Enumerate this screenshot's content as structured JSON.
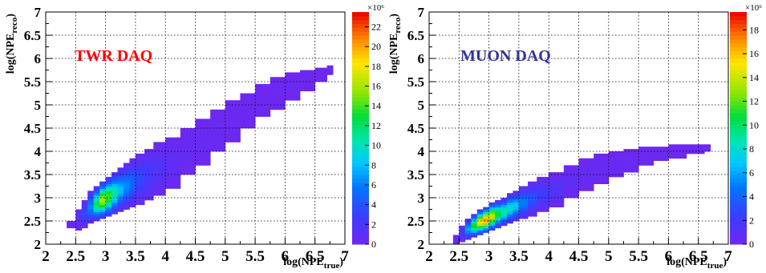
{
  "chart_data": [
    {
      "type": "heatmap",
      "title": "",
      "annotation": "TWR DAQ",
      "annotation_color": "#ff0000",
      "xlabel": {
        "base": "log(NPE",
        "sub": "true",
        "close": ")"
      },
      "ylabel": {
        "base": "log(NPE",
        "sub": "reco",
        "close": ")"
      },
      "xlim": [
        2,
        7
      ],
      "ylim": [
        2,
        7
      ],
      "x_ticks": [
        "2",
        "2.5",
        "3",
        "3.5",
        "4",
        "4.5",
        "5",
        "5.5",
        "6",
        "6.5",
        "7"
      ],
      "y_ticks": [
        "2",
        "2.5",
        "3",
        "3.5",
        "4",
        "4.5",
        "5",
        "5.5",
        "6",
        "6.5",
        "7"
      ],
      "grid": true,
      "colorbar": {
        "exponent_label": "×10⁶",
        "range": [
          0,
          23.5
        ],
        "ticks": [
          "0",
          "2",
          "4",
          "6",
          "8",
          "10",
          "12",
          "14",
          "16",
          "18",
          "20",
          "22"
        ]
      },
      "band": [
        {
          "x": 2.35,
          "ylo": 2.35,
          "yhi": 2.5,
          "z": 0.4
        },
        {
          "x": 2.5,
          "ylo": 2.3,
          "yhi": 2.75,
          "z": 1.2
        },
        {
          "x": 2.6,
          "ylo": 2.35,
          "yhi": 2.95,
          "z": 3.5
        },
        {
          "x": 2.7,
          "ylo": 2.45,
          "yhi": 3.15,
          "z": 6.5
        },
        {
          "x": 2.8,
          "ylo": 2.5,
          "yhi": 3.25,
          "z": 12
        },
        {
          "x": 2.9,
          "ylo": 2.55,
          "yhi": 3.35,
          "z": 16
        },
        {
          "x": 3.0,
          "ylo": 2.6,
          "yhi": 3.45,
          "z": 14
        },
        {
          "x": 3.1,
          "ylo": 2.65,
          "yhi": 3.55,
          "z": 11
        },
        {
          "x": 3.2,
          "ylo": 2.7,
          "yhi": 3.65,
          "z": 8
        },
        {
          "x": 3.3,
          "ylo": 2.75,
          "yhi": 3.75,
          "z": 6.5
        },
        {
          "x": 3.4,
          "ylo": 2.8,
          "yhi": 3.85,
          "z": 5
        },
        {
          "x": 3.5,
          "ylo": 2.85,
          "yhi": 3.95,
          "z": 3.5
        },
        {
          "x": 3.65,
          "ylo": 2.95,
          "yhi": 4.05,
          "z": 2.5
        },
        {
          "x": 3.8,
          "ylo": 3.05,
          "yhi": 4.2,
          "z": 1.6
        },
        {
          "x": 4.0,
          "ylo": 3.2,
          "yhi": 4.3,
          "z": 0.9
        },
        {
          "x": 4.25,
          "ylo": 3.5,
          "yhi": 4.5,
          "z": 0.5
        },
        {
          "x": 4.5,
          "ylo": 3.7,
          "yhi": 4.7,
          "z": 0.4
        },
        {
          "x": 4.75,
          "ylo": 4.0,
          "yhi": 4.9,
          "z": 0.3
        },
        {
          "x": 5.0,
          "ylo": 4.2,
          "yhi": 5.1,
          "z": 0.25
        },
        {
          "x": 5.25,
          "ylo": 4.5,
          "yhi": 5.25,
          "z": 0.2
        },
        {
          "x": 5.5,
          "ylo": 4.75,
          "yhi": 5.45,
          "z": 0.2
        },
        {
          "x": 5.75,
          "ylo": 4.9,
          "yhi": 5.6,
          "z": 0.15
        },
        {
          "x": 6.0,
          "ylo": 5.1,
          "yhi": 5.7,
          "z": 0.15
        },
        {
          "x": 6.25,
          "ylo": 5.3,
          "yhi": 5.75,
          "z": 0.1
        },
        {
          "x": 6.5,
          "ylo": 5.5,
          "yhi": 5.8,
          "z": 0.1
        },
        {
          "x": 6.7,
          "ylo": 5.65,
          "yhi": 5.85,
          "z": 0.1
        }
      ]
    },
    {
      "type": "heatmap",
      "title": "",
      "annotation": "MUON DAQ",
      "annotation_color": "#333399",
      "xlabel": {
        "base": "log(NPE",
        "sub": "true",
        "close": ")"
      },
      "ylabel": {
        "base": "log(NPE",
        "sub": "reco",
        "close": ")"
      },
      "xlim": [
        2,
        7
      ],
      "ylim": [
        2,
        7
      ],
      "x_ticks": [
        "2",
        "2.5",
        "3",
        "3.5",
        "4",
        "4.5",
        "5",
        "5.5",
        "6",
        "6.5",
        "7"
      ],
      "y_ticks": [
        "2",
        "2.5",
        "3",
        "3.5",
        "4",
        "4.5",
        "5",
        "5.5",
        "6",
        "6.5",
        "7"
      ],
      "grid": true,
      "colorbar": {
        "exponent_label": "×10⁶",
        "range": [
          0,
          19.5
        ],
        "ticks": [
          "0",
          "2",
          "4",
          "6",
          "8",
          "10",
          "12",
          "14",
          "16",
          "18"
        ]
      },
      "band": [
        {
          "x": 2.4,
          "ylo": 2.0,
          "yhi": 2.2,
          "z": 0.6
        },
        {
          "x": 2.5,
          "ylo": 2.05,
          "yhi": 2.4,
          "z": 2.5
        },
        {
          "x": 2.6,
          "ylo": 2.1,
          "yhi": 2.55,
          "z": 6
        },
        {
          "x": 2.7,
          "ylo": 2.15,
          "yhi": 2.65,
          "z": 11
        },
        {
          "x": 2.8,
          "ylo": 2.2,
          "yhi": 2.75,
          "z": 15
        },
        {
          "x": 2.9,
          "ylo": 2.25,
          "yhi": 2.8,
          "z": 17
        },
        {
          "x": 3.0,
          "ylo": 2.3,
          "yhi": 2.9,
          "z": 14
        },
        {
          "x": 3.1,
          "ylo": 2.35,
          "yhi": 2.95,
          "z": 11
        },
        {
          "x": 3.2,
          "ylo": 2.4,
          "yhi": 3.0,
          "z": 9
        },
        {
          "x": 3.3,
          "ylo": 2.45,
          "yhi": 3.1,
          "z": 8
        },
        {
          "x": 3.4,
          "ylo": 2.5,
          "yhi": 3.15,
          "z": 7
        },
        {
          "x": 3.5,
          "ylo": 2.55,
          "yhi": 3.25,
          "z": 5
        },
        {
          "x": 3.65,
          "ylo": 2.6,
          "yhi": 3.35,
          "z": 3.5
        },
        {
          "x": 3.8,
          "ylo": 2.7,
          "yhi": 3.45,
          "z": 2.2
        },
        {
          "x": 4.0,
          "ylo": 2.8,
          "yhi": 3.55,
          "z": 1.3
        },
        {
          "x": 4.25,
          "ylo": 3.0,
          "yhi": 3.7,
          "z": 0.7
        },
        {
          "x": 4.5,
          "ylo": 3.15,
          "yhi": 3.85,
          "z": 0.5
        },
        {
          "x": 4.75,
          "ylo": 3.3,
          "yhi": 3.95,
          "z": 0.35
        },
        {
          "x": 5.0,
          "ylo": 3.45,
          "yhi": 4.0,
          "z": 0.3
        },
        {
          "x": 5.25,
          "ylo": 3.55,
          "yhi": 4.05,
          "z": 0.25
        },
        {
          "x": 5.5,
          "ylo": 3.7,
          "yhi": 4.1,
          "z": 0.2
        },
        {
          "x": 5.75,
          "ylo": 3.8,
          "yhi": 4.1,
          "z": 0.15
        },
        {
          "x": 6.0,
          "ylo": 3.85,
          "yhi": 4.15,
          "z": 0.12
        },
        {
          "x": 6.3,
          "ylo": 3.95,
          "yhi": 4.15,
          "z": 0.1
        },
        {
          "x": 6.6,
          "ylo": 4.0,
          "yhi": 4.15,
          "z": 0.1
        }
      ]
    }
  ]
}
